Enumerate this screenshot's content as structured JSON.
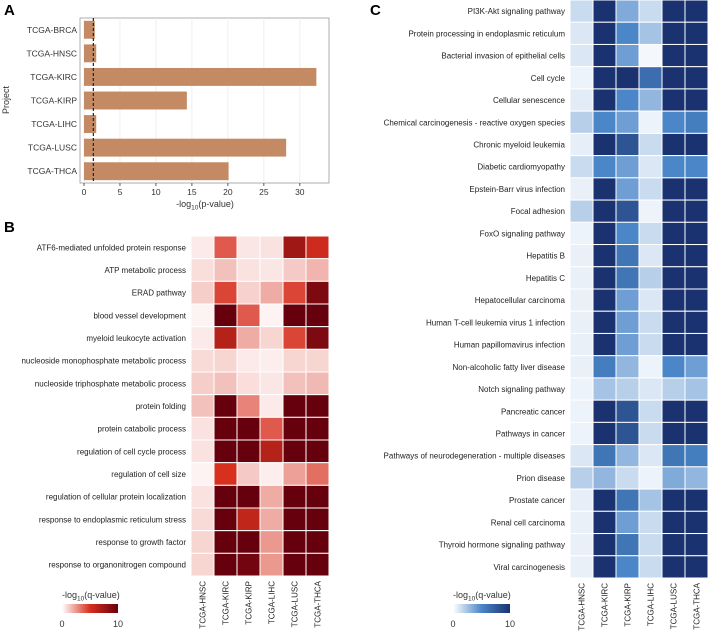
{
  "panels": {
    "a": "A",
    "b": "B",
    "c": "C"
  },
  "colors": {
    "bar": "#c48a64",
    "grid": "#ebebeb",
    "panel_bg": "#ffffff",
    "dashed_line": "#222222"
  },
  "chart_data": [
    {
      "id": "A",
      "type": "bar",
      "orientation": "horizontal",
      "categories": [
        "TCGA-BRCA",
        "TCGA-HNSC",
        "TCGA-KIRC",
        "TCGA-KIRP",
        "TCGA-LIHC",
        "TCGA-LUSC",
        "TCGA-THCA"
      ],
      "values": [
        1.5,
        1.7,
        32.3,
        14.3,
        1.7,
        28.1,
        20.1
      ],
      "xlabel": "-log10(p-value)",
      "xlabel_main": "-log",
      "xlabel_sub": "10",
      "xlabel_rest": "(p-value)",
      "ylabel": "Project",
      "xlim": [
        0,
        33.5
      ],
      "xticks": [
        0,
        5,
        10,
        15,
        20,
        25,
        30
      ],
      "xtick_labels": [
        "0",
        "5",
        "10",
        "15",
        "20",
        "25",
        "30"
      ],
      "threshold": 1.3,
      "grid": true
    },
    {
      "id": "B",
      "type": "heatmap",
      "colormap": "white-to-dark-red",
      "color_low": "#ffffff",
      "color_mid": "#d7301f",
      "color_high": "#67000d",
      "rows": [
        "ATF6-mediated unfolded protein response",
        "ATP metabolic process",
        "ERAD pathway",
        "blood vessel development",
        "myeloid leukocyte activation",
        "nucleoside monophosphate metabolic process",
        "nucleoside triphosphate metabolic process",
        "protein folding",
        "protein catabolic process",
        "regulation of cell cycle process",
        "regulation of cell size",
        "regulation of cellular protein localization",
        "response to endoplasmic reticulum stress",
        "response to growth factor",
        "response to organonitrogen compound"
      ],
      "columns": [
        "TCGA-HNSC",
        "TCGA-KIRC",
        "TCGA-KIRP",
        "TCGA-LIHC",
        "TCGA-LUSC",
        "TCGA-THCA"
      ],
      "values": [
        [
          0.5,
          4.0,
          0.6,
          0.7,
          7.5,
          5.5
        ],
        [
          0.8,
          1.5,
          0.7,
          0.6,
          1.3,
          1.8
        ],
        [
          1.2,
          4.5,
          1.1,
          2.0,
          4.5,
          9.0
        ],
        [
          0.3,
          10.0,
          4.0,
          0.3,
          10.0,
          10.0
        ],
        [
          0.5,
          6.5,
          2.0,
          1.0,
          4.5,
          9.0
        ],
        [
          0.9,
          1.0,
          0.5,
          0.4,
          1.0,
          1.0
        ],
        [
          1.2,
          1.5,
          0.8,
          0.6,
          1.5,
          1.7
        ],
        [
          1.5,
          10.0,
          3.0,
          0.5,
          10.0,
          10.0
        ],
        [
          0.7,
          10.0,
          10.0,
          4.0,
          10.0,
          10.0
        ],
        [
          0.7,
          10.0,
          10.0,
          6.5,
          10.0,
          10.0
        ],
        [
          0.3,
          5.0,
          1.3,
          0.4,
          2.3,
          3.5
        ],
        [
          0.7,
          10.0,
          10.0,
          2.0,
          10.0,
          10.0
        ],
        [
          0.9,
          10.0,
          6.0,
          2.0,
          10.0,
          10.0
        ],
        [
          1.0,
          10.0,
          10.0,
          2.5,
          10.0,
          10.0
        ],
        [
          1.0,
          10.0,
          9.5,
          2.5,
          10.0,
          10.0
        ]
      ],
      "legend_title": "-log10(q-value)",
      "legend_main": "-log",
      "legend_sub": "10",
      "legend_rest": "(q-value)",
      "legend_min": "0",
      "legend_max": "10",
      "range": [
        0,
        10
      ]
    },
    {
      "id": "C",
      "type": "heatmap",
      "colormap": "white-to-dark-blue",
      "color_low": "#ffffff",
      "color_mid": "#4a86c8",
      "color_high": "#1a3370",
      "rows": [
        "PI3K-Akt signaling pathway",
        "Protein processing in endoplasmic reticulum",
        "Bacterial invasion of epithelial cells",
        "Cell cycle",
        "Cellular senescence",
        "Chemical carcinogenesis - reactive oxygen species",
        "Chronic myeloid leukemia",
        "Diabetic cardiomyopathy",
        "Epstein-Barr virus infection",
        "Focal adhesion",
        "FoxO signaling pathway",
        "Hepatitis B",
        "Hepatitis C",
        "Hepatocellular carcinoma",
        "Human T-cell leukemia virus 1 infection",
        "Human papillomavirus infection",
        "Non-alcoholic fatty liver disease",
        "Notch signaling pathway",
        "Pancreatic cancer",
        "Pathways in cancer",
        "Pathways of neurodegeneration - multiple diseases",
        "Prion disease",
        "Prostate cancer",
        "Renal cell carcinoma",
        "Thyroid hormone signaling pathway",
        "Viral carcinogenesis"
      ],
      "columns": [
        "TCGA-HNSC",
        "TCGA-KIRC",
        "TCGA-KIRP",
        "TCGA-LIHC",
        "TCGA-LUSC",
        "TCGA-THCA"
      ],
      "values": [
        [
          1.5,
          10.0,
          3.5,
          1.5,
          10.0,
          10.0
        ],
        [
          1.0,
          10.0,
          5.0,
          2.5,
          10.0,
          10.0
        ],
        [
          1.0,
          10.0,
          4.0,
          0.3,
          10.0,
          10.0
        ],
        [
          0.5,
          10.0,
          10.0,
          6.5,
          10.0,
          10.0
        ],
        [
          0.8,
          10.0,
          5.0,
          3.0,
          10.0,
          10.0
        ],
        [
          2.0,
          5.0,
          4.0,
          0.5,
          5.0,
          5.5
        ],
        [
          0.7,
          10.0,
          8.0,
          1.5,
          10.0,
          10.0
        ],
        [
          1.5,
          5.0,
          4.0,
          1.0,
          5.0,
          5.0
        ],
        [
          0.6,
          10.0,
          4.0,
          1.5,
          10.0,
          10.0
        ],
        [
          2.0,
          10.0,
          8.0,
          0.5,
          10.0,
          10.0
        ],
        [
          0.5,
          10.0,
          5.0,
          1.5,
          10.0,
          10.0
        ],
        [
          0.6,
          10.0,
          6.0,
          1.0,
          10.0,
          10.0
        ],
        [
          0.6,
          10.0,
          6.0,
          2.0,
          10.0,
          10.0
        ],
        [
          0.6,
          10.0,
          4.0,
          1.0,
          10.0,
          10.0
        ],
        [
          0.6,
          10.0,
          4.0,
          1.5,
          10.0,
          10.0
        ],
        [
          0.6,
          10.0,
          4.0,
          1.5,
          10.0,
          10.0
        ],
        [
          0.6,
          5.5,
          3.0,
          0.5,
          5.0,
          4.0
        ],
        [
          0.5,
          2.5,
          2.0,
          1.0,
          2.0,
          2.5
        ],
        [
          0.5,
          10.0,
          8.0,
          1.5,
          10.0,
          10.0
        ],
        [
          0.5,
          10.0,
          8.0,
          1.5,
          10.0,
          10.0
        ],
        [
          1.0,
          6.0,
          3.0,
          1.0,
          6.0,
          5.5
        ],
        [
          2.0,
          3.0,
          1.5,
          0.5,
          3.5,
          3.0
        ],
        [
          0.7,
          10.0,
          6.0,
          2.5,
          10.0,
          10.0
        ],
        [
          0.6,
          10.0,
          4.0,
          1.5,
          10.0,
          10.0
        ],
        [
          0.6,
          10.0,
          6.0,
          1.5,
          10.0,
          10.0
        ],
        [
          0.6,
          10.0,
          5.0,
          1.5,
          10.0,
          10.0
        ]
      ],
      "legend_title": "-log10(q-value)",
      "legend_main": "-log",
      "legend_sub": "10",
      "legend_rest": "(q-value)",
      "legend_min": "0",
      "legend_max": "10",
      "range": [
        0,
        10
      ]
    }
  ]
}
